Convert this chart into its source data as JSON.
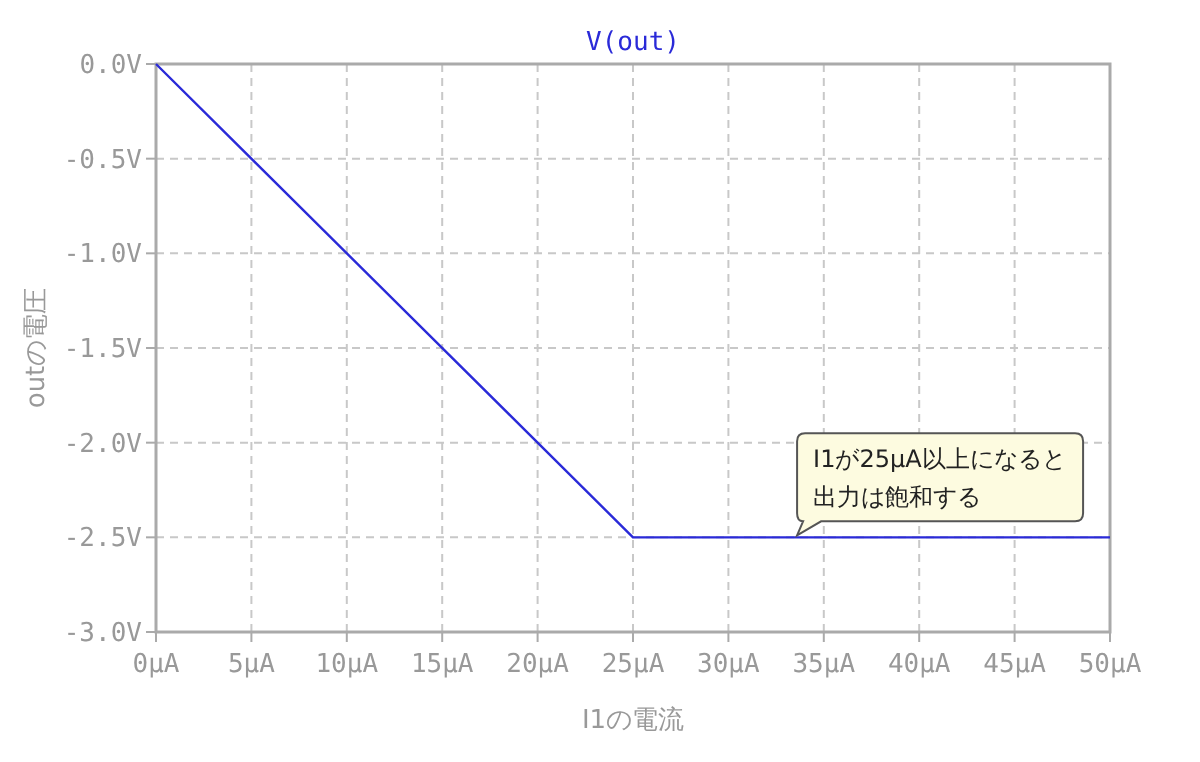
{
  "chart_data": {
    "type": "line",
    "title": "V(out)",
    "xlabel": "I1の電流",
    "ylabel": "outの電圧",
    "x": [
      0,
      25,
      50
    ],
    "series": [
      {
        "color": "#2a2ad8",
        "values": [
          0,
          -2.5,
          -2.5
        ]
      }
    ],
    "xlim": [
      0,
      50
    ],
    "ylim": [
      -3,
      0
    ],
    "xticks": [
      {
        "value": 0,
        "label": "0μA"
      },
      {
        "value": 5,
        "label": "5μA"
      },
      {
        "value": 10,
        "label": "10μA"
      },
      {
        "value": 15,
        "label": "15μA"
      },
      {
        "value": 20,
        "label": "20μA"
      },
      {
        "value": 25,
        "label": "25μA"
      },
      {
        "value": 30,
        "label": "30μA"
      },
      {
        "value": 35,
        "label": "35μA"
      },
      {
        "value": 40,
        "label": "40μA"
      },
      {
        "value": 45,
        "label": "45μA"
      },
      {
        "value": 50,
        "label": "50μA"
      }
    ],
    "yticks": [
      {
        "value": 0,
        "label": "0.0V"
      },
      {
        "value": -0.5,
        "label": "-0.5V"
      },
      {
        "value": -1,
        "label": "-1.0V"
      },
      {
        "value": -1.5,
        "label": "-1.5V"
      },
      {
        "value": -2,
        "label": "-2.0V"
      },
      {
        "value": -2.5,
        "label": "-2.5V"
      },
      {
        "value": -3,
        "label": "-3.0V"
      }
    ],
    "grid": true,
    "marker": "none",
    "line_style": "solid",
    "annotations": [
      {
        "text": "I1が25μA以上になると出力は飽和する",
        "x": 33.6,
        "y": -2.5
      }
    ]
  }
}
